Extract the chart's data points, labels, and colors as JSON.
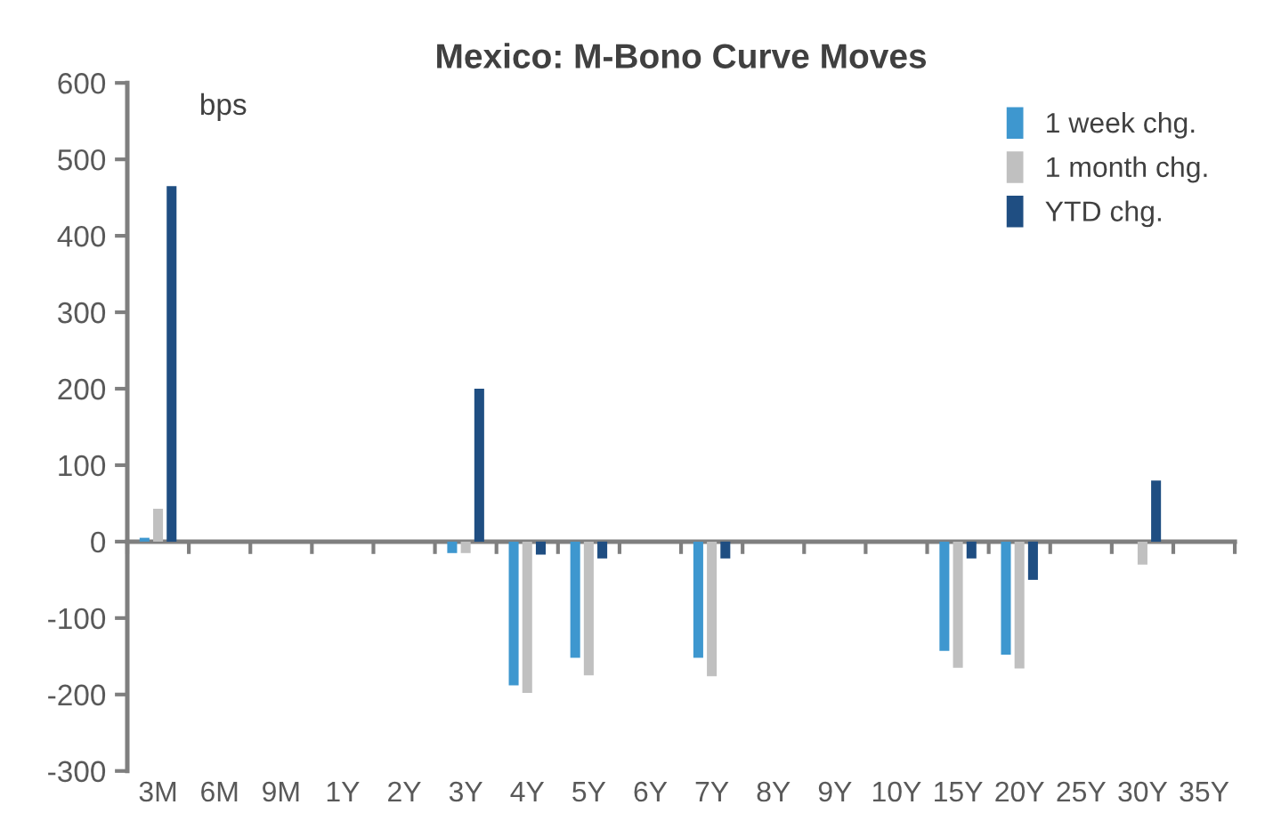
{
  "chart_data": {
    "type": "bar",
    "title": "Mexico: M-Bono Curve Moves",
    "ylabel": "bps",
    "categories": [
      "3M",
      "6M",
      "9M",
      "1Y",
      "2Y",
      "3Y",
      "4Y",
      "5Y",
      "6Y",
      "7Y",
      "8Y",
      "9Y",
      "10Y",
      "15Y",
      "20Y",
      "25Y",
      "30Y",
      "35Y"
    ],
    "series": [
      {
        "name": "1 week chg.",
        "color": "#3e97cf",
        "values": [
          5,
          null,
          null,
          null,
          null,
          -15,
          -188,
          -152,
          null,
          -152,
          null,
          null,
          null,
          -143,
          -148,
          null,
          null,
          null
        ]
      },
      {
        "name": "1 month chg.",
        "color": "#c0c0c0",
        "values": [
          43,
          null,
          null,
          null,
          null,
          -15,
          -198,
          -175,
          null,
          -176,
          null,
          null,
          null,
          -165,
          -166,
          null,
          -30,
          null
        ]
      },
      {
        "name": "YTD chg.",
        "color": "#1f4e82",
        "values": [
          465,
          null,
          null,
          null,
          null,
          200,
          -17,
          -22,
          null,
          -22,
          null,
          null,
          null,
          -22,
          -50,
          null,
          80,
          null
        ]
      }
    ],
    "ylim": [
      -300,
      600
    ],
    "yticks": [
      -300,
      -200,
      -100,
      0,
      100,
      200,
      300,
      400,
      500,
      600
    ],
    "legend": "top right"
  }
}
